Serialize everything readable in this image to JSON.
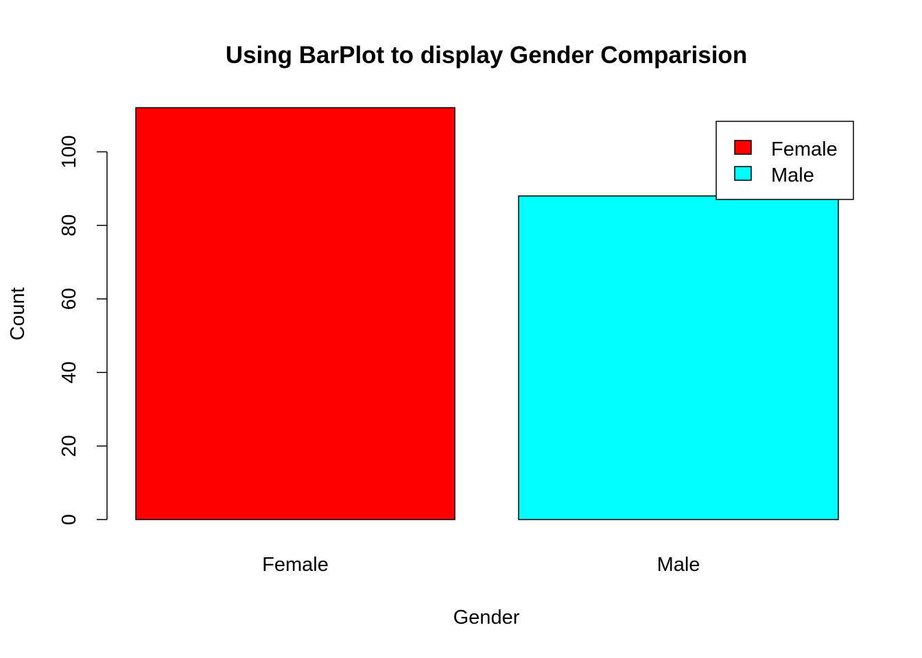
{
  "chart_data": {
    "type": "bar",
    "title": "Using BarPlot to display Gender Comparision",
    "xlabel": "Gender",
    "ylabel": "Count",
    "categories": [
      "Female",
      "Male"
    ],
    "values": [
      112,
      88
    ],
    "colors": [
      "#ff0000",
      "#00ffff"
    ],
    "ylim": [
      0,
      112
    ],
    "yticks": [
      0,
      20,
      40,
      60,
      80,
      100
    ],
    "grid": false,
    "legend": {
      "position": "top-right",
      "entries": [
        {
          "label": "Female",
          "color": "#ff0000"
        },
        {
          "label": "Male",
          "color": "#00ffff"
        }
      ]
    }
  }
}
